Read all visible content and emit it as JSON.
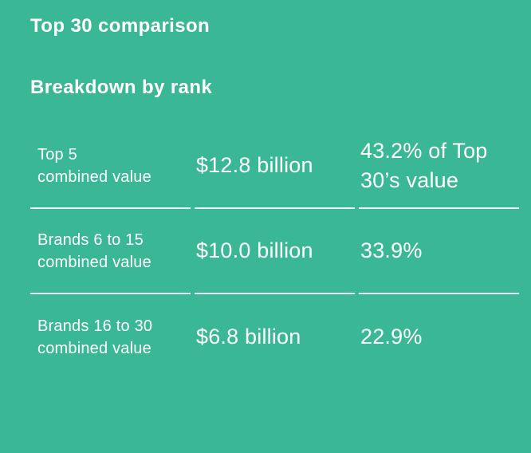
{
  "theme": {
    "background_color": "#3ab795",
    "text_color": "#ffffff",
    "divider_color": "rgba(255,255,255,0.9)"
  },
  "header": {
    "title": "Top 30 comparison",
    "section_title": "Breakdown by rank"
  },
  "table": {
    "rows": [
      {
        "label": "Top 5\ncombined value",
        "value": "$12.8 billion",
        "share": "43.2% of Top\n30’s value"
      },
      {
        "label": "Brands 6 to 15\ncombined value",
        "value": "$10.0 billion",
        "share": "33.9%"
      },
      {
        "label": "Brands 16 to 30\ncombined value",
        "value": "$6.8 billion",
        "share": "22.9%"
      }
    ]
  },
  "chart_data": {
    "type": "table",
    "title": "Top 30 comparison",
    "subtitle": "Breakdown by rank",
    "rows": [
      [
        "Top 5 combined value",
        "$12.8 billion",
        "43.2% of Top 30’s value"
      ],
      [
        "Brands 6 to 15 combined value",
        "$10.0 billion",
        "33.9%"
      ],
      [
        "Brands 16 to 30 combined value",
        "$6.8 billion",
        "22.9%"
      ]
    ],
    "combined_value_usd_billion": [
      12.8,
      10.0,
      6.8
    ],
    "share_of_top30_pct": [
      43.2,
      33.9,
      22.9
    ]
  }
}
